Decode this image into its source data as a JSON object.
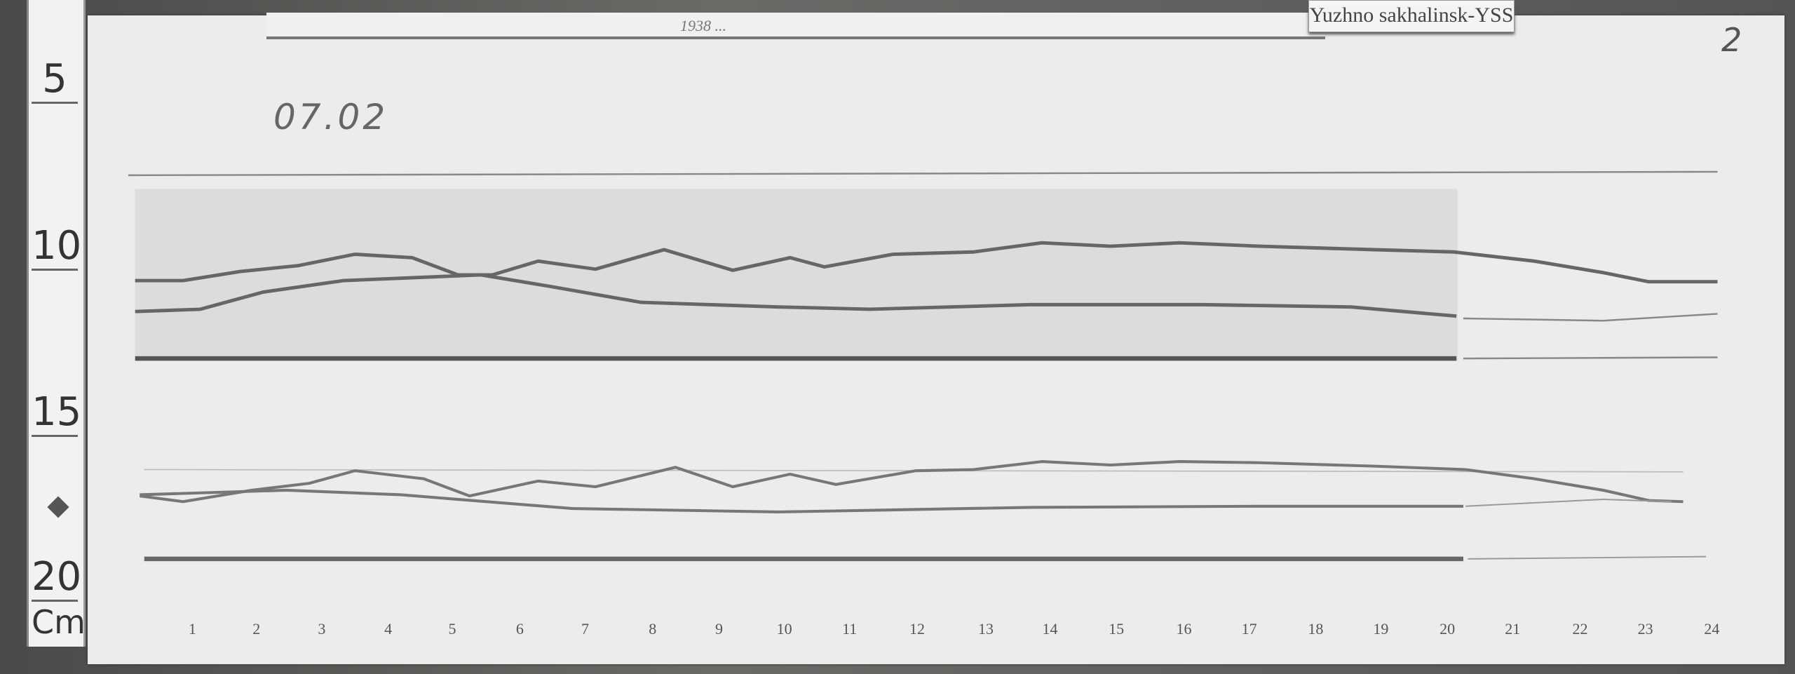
{
  "station_label": "Yuzhno sakhalinsk-YSS",
  "date": "07.02",
  "sheet_number": "2",
  "header_note": "1938 ...",
  "ruler": {
    "labels": [
      "5",
      "10",
      "15",
      "20"
    ],
    "unit": "Cm"
  },
  "hours": [
    "1",
    "2",
    "3",
    "4",
    "5",
    "6",
    "7",
    "8",
    "9",
    "10",
    "11",
    "12",
    "13",
    "14",
    "15",
    "16",
    "17",
    "18",
    "19",
    "20",
    "21",
    "22",
    "23",
    "24"
  ]
}
